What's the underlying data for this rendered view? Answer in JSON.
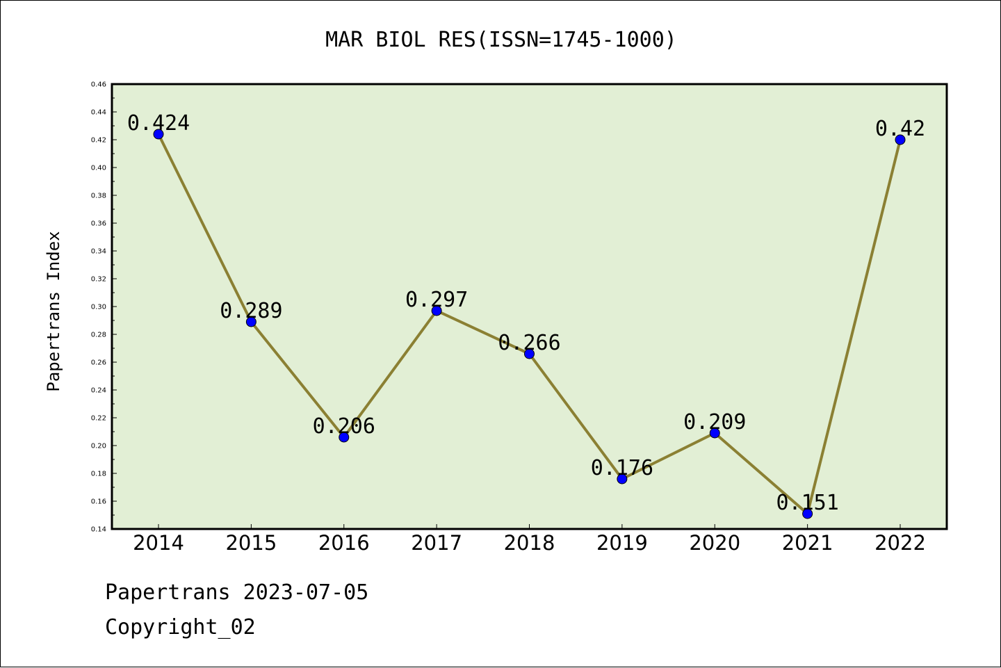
{
  "chart_data": {
    "type": "line",
    "title": "MAR BIOL RES(ISSN=1745-1000)",
    "xlabel": "",
    "ylabel": "Papertrans Index",
    "categories": [
      "2014",
      "2015",
      "2016",
      "2017",
      "2018",
      "2019",
      "2020",
      "2021",
      "2022"
    ],
    "series": [
      {
        "values": [
          0.424,
          0.289,
          0.206,
          0.297,
          0.266,
          0.176,
          0.209,
          0.151,
          0.42
        ],
        "labels": [
          "0.424",
          "0.289",
          "0.206",
          "0.297",
          "0.266",
          "0.176",
          "0.209",
          "0.151",
          "0.42"
        ]
      }
    ],
    "ylim": [
      0.14,
      0.46
    ],
    "yticks": [
      "0.14",
      "0.16",
      "0.18",
      "0.20",
      "0.22",
      "0.24",
      "0.26",
      "0.28",
      "0.30",
      "0.32",
      "0.34",
      "0.36",
      "0.38",
      "0.40",
      "0.42",
      "0.44",
      "0.46"
    ],
    "grid": false,
    "colors": {
      "plot_background": "#e2efd5",
      "line": "#8b8033",
      "marker": "#0000ff"
    }
  },
  "footer": {
    "date_line": "Papertrans 2023-07-05",
    "copyright_line": "Copyright_02"
  }
}
